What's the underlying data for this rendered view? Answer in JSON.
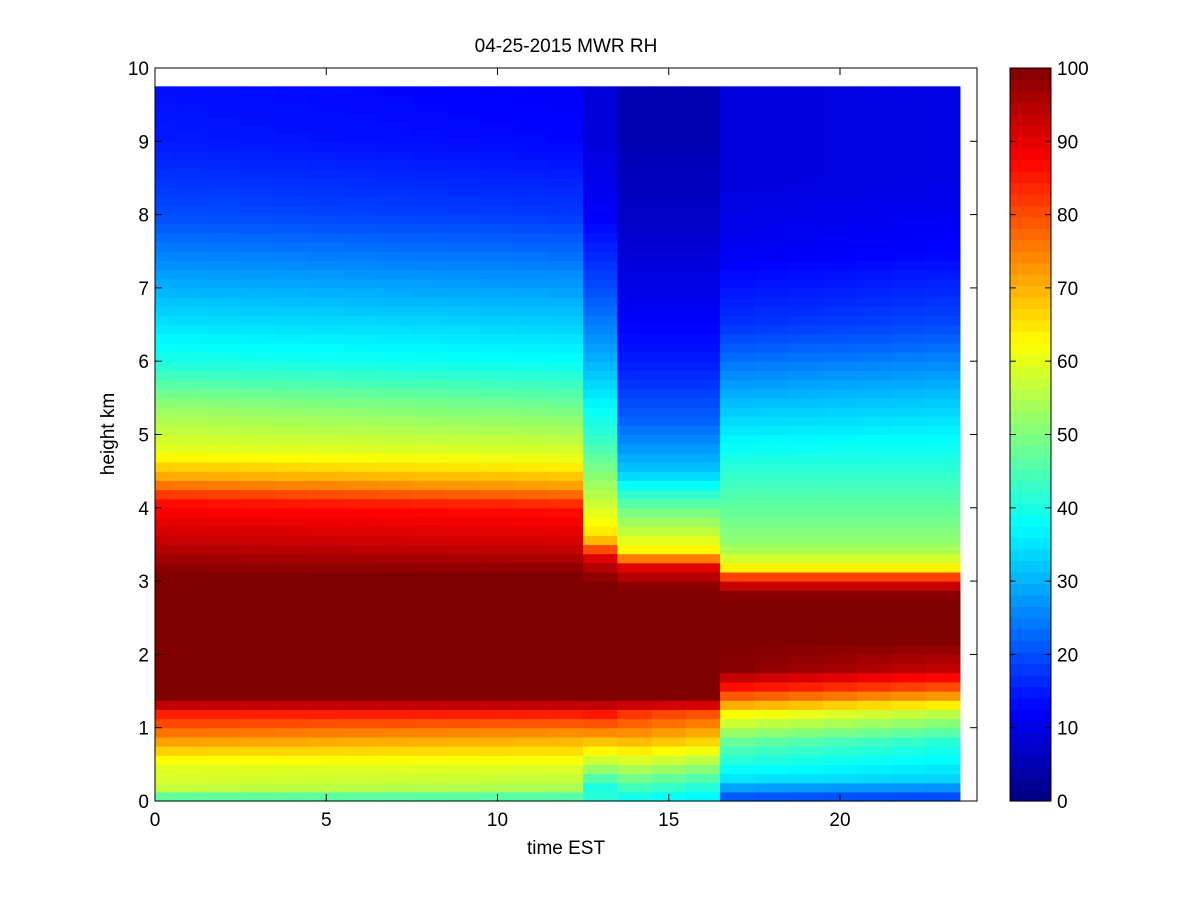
{
  "chart_data": {
    "type": "heatmap",
    "title": "04-25-2015 MWR RH",
    "xlabel": "time EST",
    "ylabel": "height km",
    "xlim": [
      0,
      24
    ],
    "ylim": [
      0,
      10
    ],
    "x_ticks": [
      0,
      5,
      10,
      15,
      20
    ],
    "y_ticks": [
      0,
      1,
      2,
      3,
      4,
      5,
      6,
      7,
      8,
      9,
      10
    ],
    "colorbar": {
      "colormap": "jet",
      "range": [
        0,
        100
      ],
      "ticks": [
        0,
        10,
        20,
        30,
        40,
        50,
        60,
        70,
        80,
        90,
        100
      ]
    },
    "x_edges": [
      0,
      0.5,
      1.5,
      2.5,
      3.5,
      4.5,
      5.5,
      6.5,
      7.5,
      8.5,
      9.5,
      10.5,
      11.5,
      12.5,
      13.5,
      14.5,
      15.5,
      16.5,
      17.5,
      18.5,
      19.5,
      20.5,
      21.5,
      22.5,
      23.5
    ],
    "profiles": [
      {
        "start": [
          [
            0,
            42
          ],
          [
            0.2,
            58
          ],
          [
            0.5,
            60
          ],
          [
            0.9,
            75
          ],
          [
            1.2,
            85
          ],
          [
            1.4,
            100
          ],
          [
            3.1,
            100
          ],
          [
            3.5,
            94
          ],
          [
            4.1,
            86
          ],
          [
            4.4,
            72
          ],
          [
            4.8,
            60
          ],
          [
            5.4,
            52
          ],
          [
            6,
            40
          ],
          [
            7,
            30
          ],
          [
            8,
            20
          ],
          [
            9,
            15
          ],
          [
            9.75,
            14
          ]
        ],
        "end": [
          [
            0,
            42
          ],
          [
            0.2,
            55
          ],
          [
            0.5,
            60
          ],
          [
            0.9,
            72
          ],
          [
            1.2,
            85
          ],
          [
            1.4,
            100
          ],
          [
            3.1,
            100
          ],
          [
            3.5,
            92
          ],
          [
            4.0,
            86
          ],
          [
            4.3,
            72
          ],
          [
            4.7,
            60
          ],
          [
            5.3,
            50
          ],
          [
            6,
            38
          ],
          [
            7,
            28
          ],
          [
            8,
            18
          ],
          [
            9,
            13
          ],
          [
            9.75,
            12
          ]
        ],
        "to": 12
      },
      {
        "start": [
          [
            0,
            42
          ],
          [
            0.2,
            40
          ],
          [
            0.5,
            55
          ],
          [
            0.9,
            72
          ],
          [
            1.2,
            86
          ],
          [
            1.4,
            100
          ],
          [
            3.0,
            100
          ],
          [
            3.3,
            92
          ],
          [
            3.6,
            66
          ],
          [
            4.2,
            55
          ],
          [
            5,
            42
          ],
          [
            6,
            30
          ],
          [
            7,
            20
          ],
          [
            8,
            12
          ],
          [
            9,
            9
          ],
          [
            9.75,
            9
          ]
        ],
        "end": [
          [
            0,
            42
          ],
          [
            0.2,
            40
          ],
          [
            0.5,
            55
          ],
          [
            0.9,
            72
          ],
          [
            1.2,
            86
          ],
          [
            1.4,
            100
          ],
          [
            3.0,
            100
          ],
          [
            3.3,
            92
          ],
          [
            3.6,
            66
          ],
          [
            4.2,
            55
          ],
          [
            5,
            42
          ],
          [
            6,
            30
          ],
          [
            7,
            20
          ],
          [
            8,
            12
          ],
          [
            9,
            9
          ],
          [
            9.75,
            9
          ]
        ],
        "to": 13
      },
      {
        "start": [
          [
            0,
            38
          ],
          [
            0.3,
            50
          ],
          [
            0.8,
            70
          ],
          [
            1.2,
            84
          ],
          [
            1.4,
            100
          ],
          [
            2.9,
            100
          ],
          [
            3.2,
            90
          ],
          [
            3.4,
            64
          ],
          [
            4,
            48
          ],
          [
            4.5,
            32
          ],
          [
            5.2,
            22
          ],
          [
            6,
            15
          ],
          [
            7,
            10
          ],
          [
            8,
            7
          ],
          [
            9,
            5
          ],
          [
            9.75,
            5
          ]
        ],
        "end": [
          [
            0,
            35
          ],
          [
            0.3,
            45
          ],
          [
            0.8,
            66
          ],
          [
            1.2,
            80
          ],
          [
            1.4,
            100
          ],
          [
            2.9,
            100
          ],
          [
            3.2,
            90
          ],
          [
            3.4,
            64
          ],
          [
            4,
            48
          ],
          [
            4.5,
            32
          ],
          [
            5.2,
            22
          ],
          [
            6,
            15
          ],
          [
            7,
            10
          ],
          [
            8,
            7
          ],
          [
            9,
            5
          ],
          [
            9.75,
            5
          ]
        ],
        "to": 16
      },
      {
        "start": [
          [
            0,
            18
          ],
          [
            0.3,
            35
          ],
          [
            0.8,
            48
          ],
          [
            1.2,
            64
          ],
          [
            1.5,
            84
          ],
          [
            1.8,
            100
          ],
          [
            2.8,
            100
          ],
          [
            3.0,
            90
          ],
          [
            3.2,
            62
          ],
          [
            3.5,
            52
          ],
          [
            4.5,
            42
          ],
          [
            5.5,
            30
          ],
          [
            6.5,
            17
          ],
          [
            7.5,
            11
          ],
          [
            8.5,
            9
          ],
          [
            9.75,
            9
          ]
        ],
        "end": [
          [
            0,
            16
          ],
          [
            0.3,
            33
          ],
          [
            0.8,
            40
          ],
          [
            1.2,
            55
          ],
          [
            1.5,
            76
          ],
          [
            1.8,
            92
          ],
          [
            2.2,
            100
          ],
          [
            2.8,
            100
          ],
          [
            3.0,
            90
          ],
          [
            3.2,
            62
          ],
          [
            3.5,
            52
          ],
          [
            4.5,
            42
          ],
          [
            5.5,
            32
          ],
          [
            6.5,
            20
          ],
          [
            7.5,
            13
          ],
          [
            8.5,
            10
          ],
          [
            9.75,
            10
          ]
        ],
        "to": 24
      }
    ]
  }
}
